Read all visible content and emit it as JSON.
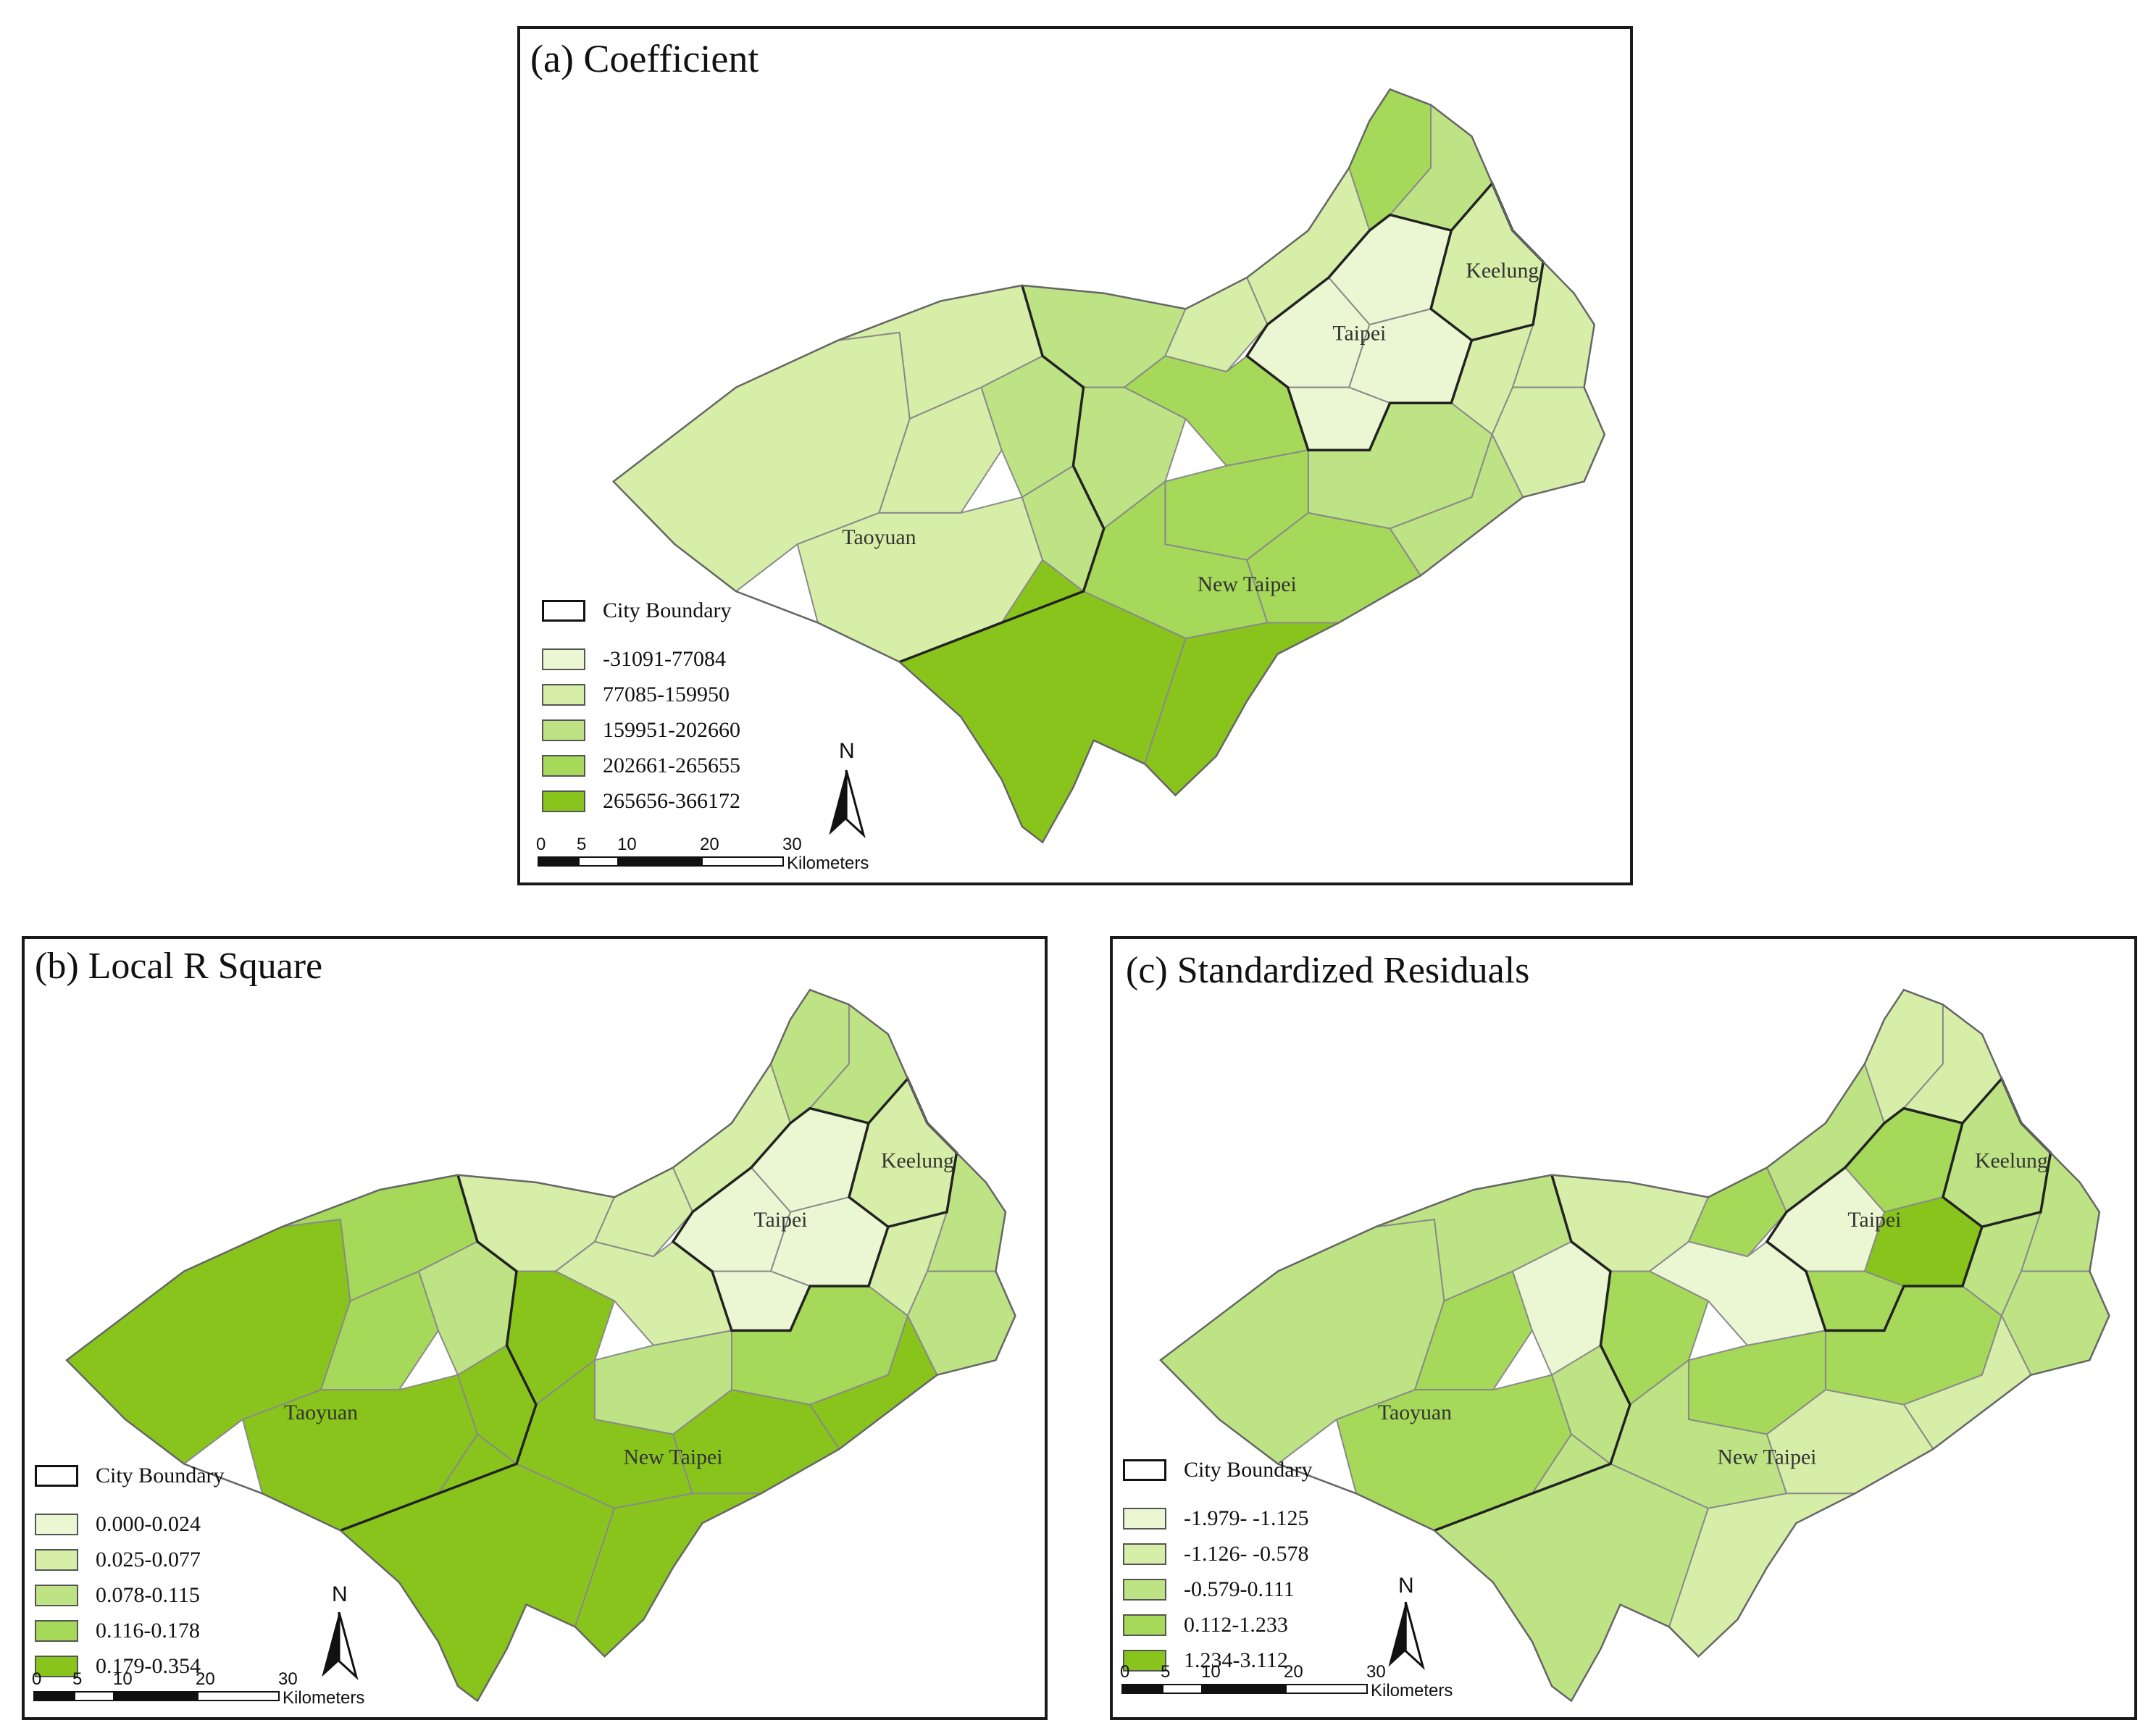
{
  "boundary_color": "#222222",
  "district_line_color": "#8a8a8a",
  "panels": [
    {
      "id": "a",
      "title": "(a) Coefficient",
      "legend_title": "City Boundary",
      "classes": [
        {
          "label": "-31091-77084",
          "color": "#ebf7d2"
        },
        {
          "label": "77085-159950",
          "color": "#d6eea8"
        },
        {
          "label": "159951-202660",
          "color": "#bee384"
        },
        {
          "label": "202661-265655",
          "color": "#a6d85a"
        },
        {
          "label": "265656-366172",
          "color": "#88c41c"
        }
      ],
      "cities": {
        "taipei": "Taipei",
        "keelung": "Keelung",
        "taoyuan": "Taoyuan",
        "new_taipei": "New Taipei"
      },
      "north": "N",
      "scale": {
        "ticks": [
          "0",
          "5",
          "10",
          "20",
          "30"
        ],
        "unit": "Kilometers"
      }
    },
    {
      "id": "b",
      "title": "(b) Local R Square",
      "legend_title": "City Boundary",
      "classes": [
        {
          "label": "0.000-0.024",
          "color": "#ebf7d2"
        },
        {
          "label": "0.025-0.077",
          "color": "#d6eea8"
        },
        {
          "label": "0.078-0.115",
          "color": "#bee384"
        },
        {
          "label": "0.116-0.178",
          "color": "#a6d85a"
        },
        {
          "label": "0.179-0.354",
          "color": "#88c41c"
        }
      ],
      "cities": {
        "taipei": "Taipei",
        "keelung": "Keelung",
        "taoyuan": "Taoyuan",
        "new_taipei": "New Taipei"
      },
      "north": "N",
      "scale": {
        "ticks": [
          "0",
          "5",
          "10",
          "20",
          "30"
        ],
        "unit": "Kilometers"
      }
    },
    {
      "id": "c",
      "title": "(c) Standardized Residuals",
      "legend_title": "City Boundary",
      "classes": [
        {
          "label": "-1.979- -1.125",
          "color": "#ebf7d2"
        },
        {
          "label": "-1.126- -0.578",
          "color": "#d6eea8"
        },
        {
          "label": "-0.579-0.111",
          "color": "#bee384"
        },
        {
          "label": "0.112-1.233",
          "color": "#a6d85a"
        },
        {
          "label": "1.234-3.112",
          "color": "#88c41c"
        }
      ],
      "cities": {
        "taipei": "Taipei",
        "keelung": "Keelung",
        "taoyuan": "Taoyuan",
        "new_taipei": "New Taipei"
      },
      "north": "N",
      "scale": {
        "ticks": [
          "0",
          "5",
          "10",
          "20",
          "30"
        ],
        "unit": "Kilometers"
      }
    }
  ]
}
